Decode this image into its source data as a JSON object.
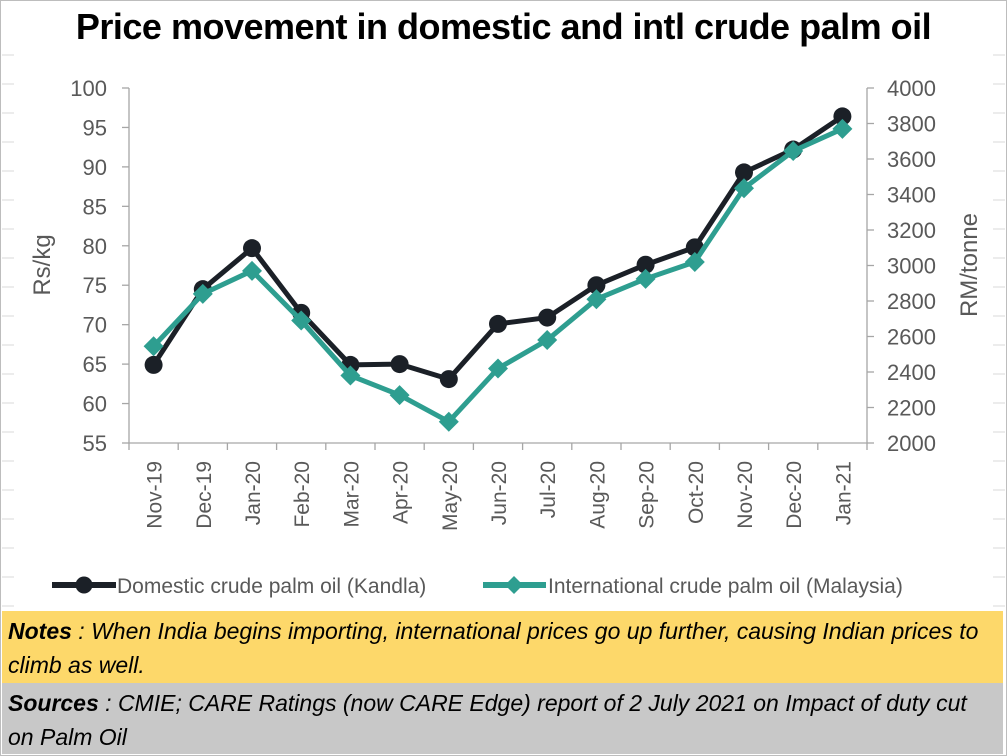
{
  "title": "Price movement in domestic and intl crude palm oil",
  "notes": {
    "label": "Notes",
    "separator": " : ",
    "text": "When India begins importing, international prices go up further, causing Indian prices to climb as well."
  },
  "sources": {
    "label": "Sources",
    "separator": " : ",
    "text": "CMIE; CARE Ratings (now CARE Edge) report of 2 July 2021 on Impact of duty cut on Palm Oil"
  },
  "colors": {
    "domestic": "#1b2027",
    "international": "#2e9e90",
    "notes_bg": "#fdd86a",
    "sources_bg": "#c8c8c8"
  },
  "chart_data": {
    "type": "line",
    "title": "Price movement in domestic and intl crude palm oil",
    "categories": [
      "Nov-19",
      "Dec-19",
      "Jan-20",
      "Feb-20",
      "Mar-20",
      "Apr-20",
      "May-20",
      "Jun-20",
      "Jul-20",
      "Aug-20",
      "Sep-20",
      "Oct-20",
      "Nov-20",
      "Dec-20",
      "Jan-21"
    ],
    "ylabel": "Rs/kg",
    "y2label": "RM/tonne",
    "ylim": [
      55,
      100
    ],
    "y2lim": [
      2000,
      4000
    ],
    "yticks": [
      55,
      60,
      65,
      70,
      75,
      80,
      85,
      90,
      95,
      100
    ],
    "y2ticks": [
      2000,
      2200,
      2400,
      2600,
      2800,
      3000,
      3200,
      3400,
      3600,
      3800,
      4000
    ],
    "grid": false,
    "legend_position": "bottom",
    "series": [
      {
        "name": "Domestic crude palm oil (Kandla)",
        "axis": "left",
        "marker": "circle",
        "values": [
          64.9,
          74.5,
          79.7,
          71.5,
          64.9,
          65.0,
          63.1,
          70.1,
          70.9,
          75.0,
          77.6,
          79.8,
          89.3,
          92.2,
          96.4
        ]
      },
      {
        "name": "International crude palm oil (Malaysia)",
        "axis": "right",
        "marker": "diamond",
        "values": [
          2545,
          2840,
          2970,
          2690,
          2380,
          2270,
          2120,
          2420,
          2580,
          2810,
          2925,
          3020,
          3435,
          3645,
          3770
        ]
      }
    ]
  }
}
